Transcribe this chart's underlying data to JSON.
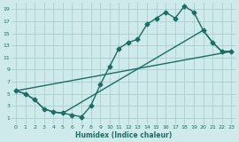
{
  "xlabel": "Humidex (Indice chaleur)",
  "bg_color": "#ceeaea",
  "grid_color": "#aacece",
  "line_color": "#1a6e64",
  "xlim": [
    -0.5,
    23.5
  ],
  "ylim": [
    0,
    20
  ],
  "xticks": [
    0,
    1,
    2,
    3,
    4,
    5,
    6,
    7,
    8,
    9,
    10,
    11,
    12,
    13,
    14,
    15,
    16,
    17,
    18,
    19,
    20,
    21,
    22,
    23
  ],
  "yticks": [
    1,
    3,
    5,
    7,
    9,
    11,
    13,
    15,
    17,
    19
  ],
  "line1_x": [
    0,
    1,
    2,
    3,
    4,
    5,
    6,
    7,
    8,
    9,
    10,
    11,
    12,
    13,
    14,
    15,
    16,
    17,
    18,
    19,
    20,
    21,
    22,
    23
  ],
  "line1_y": [
    5.5,
    5.0,
    4.0,
    2.5,
    2.0,
    1.8,
    1.5,
    1.2,
    3.0,
    6.5,
    9.5,
    12.5,
    13.5,
    14.0,
    16.5,
    17.5,
    18.5,
    17.5,
    19.5,
    18.5,
    15.5,
    13.5,
    12.0,
    12.0
  ],
  "line2_x": [
    0,
    1,
    2,
    3,
    4,
    5,
    20,
    21,
    22,
    23
  ],
  "line2_y": [
    5.5,
    5.0,
    4.0,
    2.5,
    2.0,
    1.8,
    15.5,
    13.5,
    12.0,
    12.0
  ],
  "line3_x": [
    0,
    23
  ],
  "line3_y": [
    5.5,
    12.0
  ],
  "markersize": 2.5,
  "linewidth": 1.0
}
